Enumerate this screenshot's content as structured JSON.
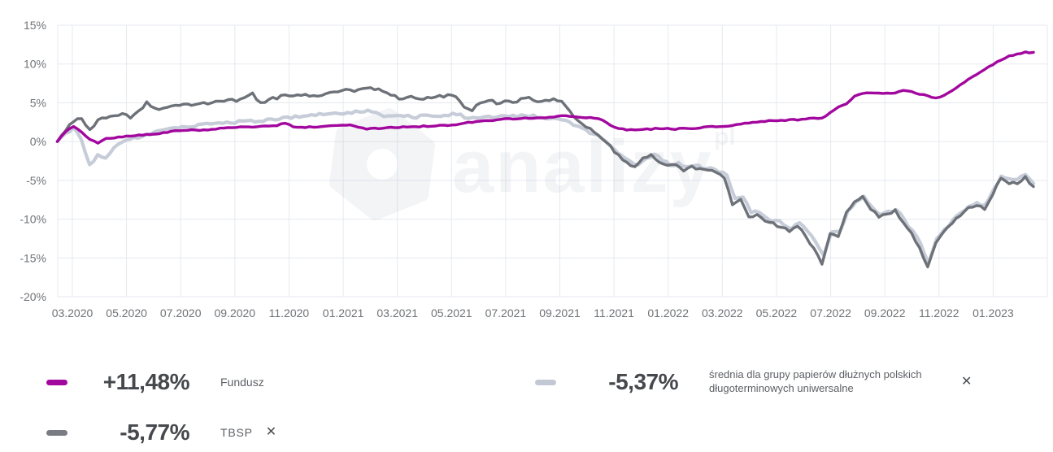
{
  "watermark": {
    "text": "analizy",
    "suffix": "pl"
  },
  "legend": {
    "close_glyph": "✕",
    "items": [
      {
        "id": "fundusz",
        "swatch_color": "#a2079e",
        "value": "+11,48%",
        "label": "Fundusz",
        "closable": false
      },
      {
        "id": "srednia",
        "swatch_color": "#c3c9d4",
        "value": "-5,37%",
        "label": "średnia dla grupy papierów dłużnych polskich długoterminowych uniwersalne",
        "closable": true
      },
      {
        "id": "tbsp",
        "swatch_color": "#797d83",
        "value": "-5,77%",
        "label": "TBSP",
        "closable": true
      }
    ]
  },
  "chart_data": {
    "type": "line",
    "title": "",
    "xlabel": "",
    "ylabel": "",
    "grid": true,
    "legend_position": "bottom",
    "ylim": [
      -20,
      15
    ],
    "y_tick_labels": [
      "15%",
      "10%",
      "5%",
      "0%",
      "-5%",
      "-10%",
      "-15%",
      "-20%"
    ],
    "y_tick_values": [
      15,
      10,
      5,
      0,
      -5,
      -10,
      -15,
      -20
    ],
    "x_tick_labels": [
      "03.2020",
      "05.2020",
      "07.2020",
      "09.2020",
      "11.2020",
      "01.2021",
      "03.2021",
      "05.2021",
      "07.2021",
      "09.2021",
      "11.2021",
      "01.2022",
      "03.2022",
      "05.2022",
      "07.2022",
      "09.2022",
      "11.2022",
      "01.2023"
    ],
    "x_range": [
      "2020-02",
      "2023-02"
    ],
    "x_note": "values sampled at evenly spaced dates from mid-Feb 2020 to late Feb 2023, percent return",
    "series": [
      {
        "name": "Fundusz",
        "color": "#a2079e",
        "end_value_label": "+11,48%",
        "values": [
          0.0,
          1.2,
          2.0,
          1.2,
          0.3,
          -0.2,
          0.4,
          0.5,
          0.6,
          0.7,
          0.8,
          0.9,
          1.0,
          1.1,
          1.3,
          1.4,
          1.4,
          1.5,
          1.5,
          1.6,
          1.7,
          1.8,
          1.8,
          1.9,
          1.9,
          2.0,
          2.0,
          2.1,
          2.4,
          1.9,
          1.8,
          1.9,
          1.9,
          2.0,
          2.1,
          2.1,
          2.1,
          1.8,
          1.6,
          1.7,
          1.7,
          1.8,
          1.8,
          1.9,
          1.9,
          2.0,
          2.0,
          2.1,
          2.1,
          2.2,
          2.4,
          2.5,
          2.6,
          2.7,
          2.8,
          2.9,
          2.9,
          3.0,
          3.0,
          3.1,
          3.1,
          3.2,
          3.3,
          3.3,
          3.2,
          3.1,
          3.0,
          2.8,
          2.1,
          1.7,
          1.5,
          1.5,
          1.6,
          1.6,
          1.7,
          1.7,
          1.6,
          1.7,
          1.7,
          1.8,
          1.9,
          1.9,
          2.0,
          2.1,
          2.3,
          2.4,
          2.5,
          2.6,
          2.7,
          2.7,
          2.8,
          2.8,
          2.9,
          3.0,
          3.0,
          3.7,
          4.4,
          4.9,
          5.9,
          6.2,
          6.3,
          6.2,
          6.3,
          6.3,
          6.6,
          6.4,
          6.1,
          5.9,
          5.6,
          5.9,
          6.6,
          7.3,
          8.1,
          8.7,
          9.3,
          9.9,
          10.5,
          11.0,
          11.3,
          11.5,
          11.5
        ]
      },
      {
        "name": "średnia dla grupy papierów dłużnych polskich długoterminowych uniwersalne",
        "color": "#c6ccd8",
        "end_value_label": "-5,37%",
        "values": [
          0.0,
          1.0,
          1.8,
          0.2,
          -2.9,
          -1.8,
          -2.2,
          -0.8,
          -0.1,
          0.3,
          0.6,
          0.9,
          1.2,
          1.5,
          1.6,
          1.8,
          1.9,
          2.0,
          2.1,
          2.2,
          2.3,
          2.4,
          2.5,
          2.6,
          2.6,
          2.7,
          2.8,
          2.9,
          3.0,
          3.1,
          3.2,
          3.3,
          3.4,
          3.5,
          3.6,
          3.7,
          3.7,
          3.8,
          3.9,
          3.9,
          3.4,
          3.2,
          3.3,
          3.4,
          3.1,
          3.3,
          3.3,
          3.4,
          3.4,
          3.5,
          3.4,
          3.0,
          3.1,
          3.2,
          3.2,
          3.2,
          3.3,
          3.2,
          3.3,
          3.4,
          3.1,
          3.0,
          2.8,
          2.6,
          2.2,
          1.7,
          1.2,
          0.7,
          0.0,
          -0.9,
          -1.9,
          -2.5,
          -3.0,
          -2.0,
          -1.7,
          -2.4,
          -3.0,
          -2.8,
          -3.4,
          -3.0,
          -3.4,
          -3.4,
          -3.9,
          -4.4,
          -7.4,
          -7.2,
          -9.2,
          -9.0,
          -9.9,
          -10.2,
          -10.6,
          -11.2,
          -10.6,
          -11.6,
          -13.0,
          -14.8,
          -11.6,
          -11.7,
          -8.9,
          -7.7,
          -7.1,
          -8.3,
          -9.4,
          -9.1,
          -8.7,
          -10.2,
          -11.5,
          -13.2,
          -15.5,
          -12.6,
          -11.4,
          -10.1,
          -9.2,
          -8.4,
          -7.9,
          -8.3,
          -6.4,
          -4.3,
          -4.9,
          -5.0,
          -4.2,
          -5.4
        ]
      },
      {
        "name": "TBSP",
        "color": "#6d7178",
        "end_value_label": "-5,77%",
        "values": [
          0.0,
          1.5,
          2.6,
          3.0,
          1.4,
          2.8,
          3.0,
          3.3,
          3.6,
          3.0,
          4.0,
          5.0,
          4.2,
          4.4,
          4.5,
          4.6,
          4.7,
          4.8,
          4.9,
          5.0,
          5.2,
          5.4,
          5.3,
          5.8,
          6.3,
          4.9,
          5.4,
          5.6,
          6.0,
          5.8,
          6.1,
          5.8,
          6.0,
          6.2,
          6.5,
          6.5,
          6.6,
          6.6,
          6.9,
          6.7,
          6.5,
          6.0,
          5.6,
          5.7,
          5.6,
          5.3,
          5.7,
          5.8,
          6.0,
          5.7,
          4.4,
          4.0,
          5.0,
          5.4,
          4.9,
          5.2,
          4.9,
          5.5,
          5.8,
          5.0,
          5.2,
          5.4,
          5.2,
          4.0,
          2.6,
          1.8,
          1.2,
          0.4,
          -0.6,
          -1.8,
          -2.7,
          -3.3,
          -2.2,
          -1.8,
          -2.6,
          -3.2,
          -3.0,
          -3.7,
          -3.2,
          -3.6,
          -3.6,
          -4.1,
          -4.6,
          -8.0,
          -7.6,
          -9.8,
          -9.4,
          -10.3,
          -10.6,
          -11.0,
          -11.7,
          -11.0,
          -12.1,
          -13.8,
          -15.8,
          -11.9,
          -12.1,
          -9.1,
          -7.9,
          -7.2,
          -8.6,
          -9.7,
          -9.3,
          -8.9,
          -10.6,
          -11.9,
          -13.7,
          -16.3,
          -13.0,
          -11.7,
          -10.4,
          -9.5,
          -8.6,
          -8.2,
          -8.7,
          -6.8,
          -4.6,
          -5.3,
          -5.4,
          -4.6,
          -5.8
        ]
      }
    ]
  }
}
